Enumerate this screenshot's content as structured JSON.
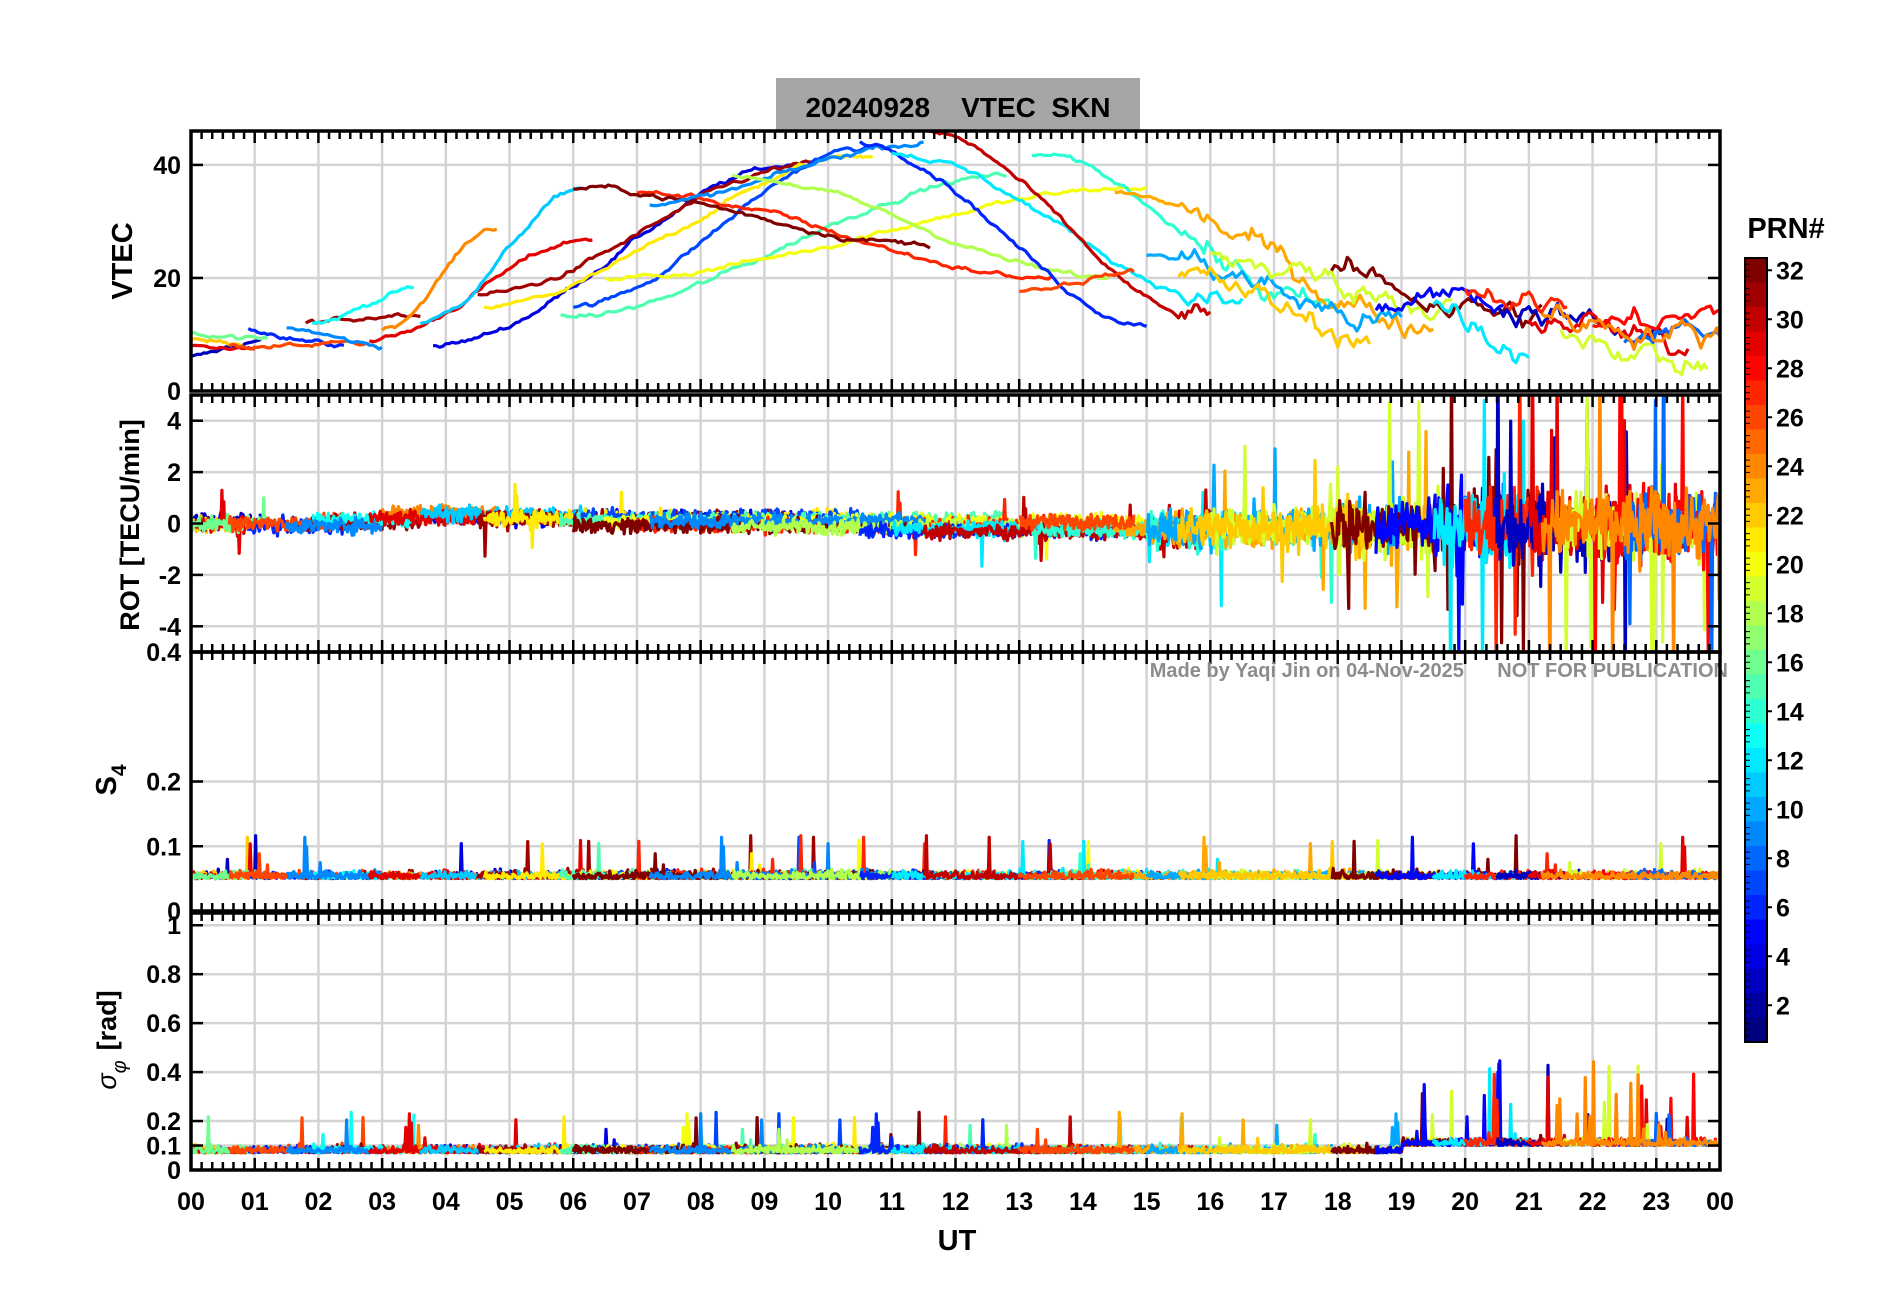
{
  "chart_data": {
    "type": "line",
    "title": "20240928    VTEC  SKN",
    "watermark": "Made by Yaqi Jin on 04-Nov-2025      NOT FOR PUBLICATION",
    "xlabel": "UT",
    "x_ticks": [
      "00",
      "01",
      "02",
      "03",
      "04",
      "05",
      "06",
      "07",
      "08",
      "09",
      "10",
      "11",
      "12",
      "13",
      "14",
      "15",
      "16",
      "17",
      "18",
      "19",
      "20",
      "21",
      "22",
      "23",
      "00"
    ],
    "xlim": [
      0,
      24
    ],
    "colorbar": {
      "label": "PRN#",
      "range": [
        1,
        32
      ],
      "ticks": [
        "2",
        "4",
        "6",
        "8",
        "10",
        "12",
        "14",
        "16",
        "18",
        "20",
        "22",
        "24",
        "26",
        "28",
        "30",
        "32"
      ]
    },
    "panels": [
      {
        "ylabel": "VTEC",
        "ylim": [
          0,
          46
        ],
        "ticks": [
          "0",
          "20",
          "40"
        ],
        "tick_values": [
          0,
          20,
          40
        ],
        "tick_format": "int",
        "kind": "tec"
      },
      {
        "ylabel": "ROT [TECU/min]",
        "ylim": [
          -5,
          5
        ],
        "ticks": [
          "-4",
          "-2",
          "0",
          "2",
          "4"
        ],
        "tick_values": [
          -4,
          -2,
          0,
          2,
          4
        ],
        "kind": "rot"
      },
      {
        "ylabel": "S4",
        "ylabel_main": "S",
        "ylabel_sub": "4",
        "ylim": [
          0,
          0.4
        ],
        "ticks": [
          "0",
          "0.1",
          "0.2",
          "0.4"
        ],
        "tick_values": [
          0,
          0.1,
          0.2,
          0.4
        ],
        "kind": "s4"
      },
      {
        "ylabel": "σ_φ [rad]",
        "ylabel_main": "σ",
        "ylabel_sub": "φ",
        "ylabel_unit": "[rad]",
        "ylim": [
          0,
          1.05
        ],
        "ticks": [
          "0",
          "0.1",
          "0.2",
          "0.4",
          "0.6",
          "0.8",
          "1"
        ],
        "tick_values": [
          0,
          0.1,
          0.2,
          0.4,
          0.6,
          0.8,
          1
        ],
        "kind": "sigma"
      }
    ],
    "series": [
      {
        "prn": 3,
        "start": 0.0,
        "end": 1.1,
        "vtec_start": 6,
        "vtec_end": 9
      },
      {
        "prn": 22,
        "start": 0.0,
        "end": 0.9,
        "vtec_start": 9,
        "vtec_end": 8
      },
      {
        "prn": 29,
        "start": 0.0,
        "end": 1.0,
        "vtec_start": 8,
        "vtec_end": 7
      },
      {
        "prn": 16,
        "start": 0.0,
        "end": 1.2,
        "vtec_start": 10,
        "vtec_end": 9
      },
      {
        "prn": 6,
        "start": 0.9,
        "end": 2.4,
        "vtec_start": 11,
        "vtec_end": 8
      },
      {
        "prn": 26,
        "start": 0.6,
        "end": 2.8,
        "vtec_start": 8,
        "vtec_end": 8
      },
      {
        "prn": 31,
        "start": 1.8,
        "end": 3.6,
        "vtec_start": 12,
        "vtec_end": 14
      },
      {
        "prn": 13,
        "start": 1.9,
        "end": 3.5,
        "vtec_start": 12,
        "vtec_end": 18
      },
      {
        "prn": 9,
        "start": 1.5,
        "end": 3.0,
        "vtec_start": 11,
        "vtec_end": 8
      },
      {
        "prn": 4,
        "start": 3.8,
        "end": 9.5,
        "vtec_start": 8,
        "vtec_end": 40
      },
      {
        "prn": 24,
        "start": 3.0,
        "end": 4.8,
        "vtec_start": 11,
        "vtec_end": 29
      },
      {
        "prn": 29,
        "start": 2.8,
        "end": 6.3,
        "vtec_start": 9,
        "vtec_end": 27
      },
      {
        "prn": 11,
        "start": 3.6,
        "end": 6.2,
        "vtec_start": 12,
        "vtec_end": 36
      },
      {
        "prn": 31,
        "start": 4.5,
        "end": 9.8,
        "vtec_start": 17,
        "vtec_end": 40
      },
      {
        "prn": 21,
        "start": 4.6,
        "end": 10.7,
        "vtec_start": 15,
        "vtec_end": 42
      },
      {
        "prn": 7,
        "start": 6.0,
        "end": 10.6,
        "vtec_start": 15,
        "vtec_end": 43
      },
      {
        "prn": 15,
        "start": 5.8,
        "end": 12.8,
        "vtec_start": 13,
        "vtec_end": 38
      },
      {
        "prn": 20,
        "start": 6.5,
        "end": 15.0,
        "vtec_start": 20,
        "vtec_end": 36
      },
      {
        "prn": 27,
        "start": 7.0,
        "end": 13.5,
        "vtec_start": 35,
        "vtec_end": 20
      },
      {
        "prn": 32,
        "start": 6.0,
        "end": 11.6,
        "vtec_start": 36,
        "vtec_end": 26
      },
      {
        "prn": 9,
        "start": 7.2,
        "end": 11.5,
        "vtec_start": 33,
        "vtec_end": 44
      },
      {
        "prn": 18,
        "start": 8.5,
        "end": 14.4,
        "vtec_start": 38,
        "vtec_end": 20
      },
      {
        "prn": 6,
        "start": 10.5,
        "end": 15.0,
        "vtec_start": 44,
        "vtec_end": 12
      },
      {
        "prn": 12,
        "start": 11.0,
        "end": 16.5,
        "vtec_start": 42,
        "vtec_end": 15
      },
      {
        "prn": 30,
        "start": 11.5,
        "end": 16.0,
        "vtec_start": 46,
        "vtec_end": 12
      },
      {
        "prn": 14,
        "start": 13.2,
        "end": 18.0,
        "vtec_start": 42,
        "vtec_end": 14
      },
      {
        "prn": 23,
        "start": 14.5,
        "end": 19.5,
        "vtec_start": 35,
        "vtec_end": 12
      },
      {
        "prn": 26,
        "start": 13.0,
        "end": 14.8,
        "vtec_start": 18,
        "vtec_end": 21
      },
      {
        "prn": 10,
        "start": 15.0,
        "end": 19.0,
        "vtec_start": 24,
        "vtec_end": 12
      },
      {
        "prn": 19,
        "start": 16.0,
        "end": 19.8,
        "vtec_start": 23,
        "vtec_end": 16
      },
      {
        "prn": 22,
        "start": 15.5,
        "end": 18.5,
        "vtec_start": 20,
        "vtec_end": 10
      },
      {
        "prn": 32,
        "start": 17.9,
        "end": 21.2,
        "vtec_start": 20,
        "vtec_end": 13
      },
      {
        "prn": 5,
        "start": 18.6,
        "end": 20.6,
        "vtec_start": 15,
        "vtec_end": 17
      },
      {
        "prn": 12,
        "start": 19.5,
        "end": 21.0,
        "vtec_start": 15,
        "vtec_end": 8
      },
      {
        "prn": 27,
        "start": 20.0,
        "end": 21.6,
        "vtec_start": 18,
        "vtec_end": 15
      },
      {
        "prn": 3,
        "start": 20.5,
        "end": 23.2,
        "vtec_start": 16,
        "vtec_end": 8
      },
      {
        "prn": 29,
        "start": 21.0,
        "end": 23.5,
        "vtec_start": 14,
        "vtec_end": 7
      },
      {
        "prn": 19,
        "start": 21.5,
        "end": 23.8,
        "vtec_start": 12,
        "vtec_end": 4
      },
      {
        "prn": 28,
        "start": 22.0,
        "end": 24.0,
        "vtec_start": 12,
        "vtec_end": 13
      },
      {
        "prn": 8,
        "start": 22.5,
        "end": 24.0,
        "vtec_start": 10,
        "vtec_end": 11
      },
      {
        "prn": 24,
        "start": 21.2,
        "end": 24.0,
        "vtec_start": 13,
        "vtec_end": 10
      }
    ]
  }
}
